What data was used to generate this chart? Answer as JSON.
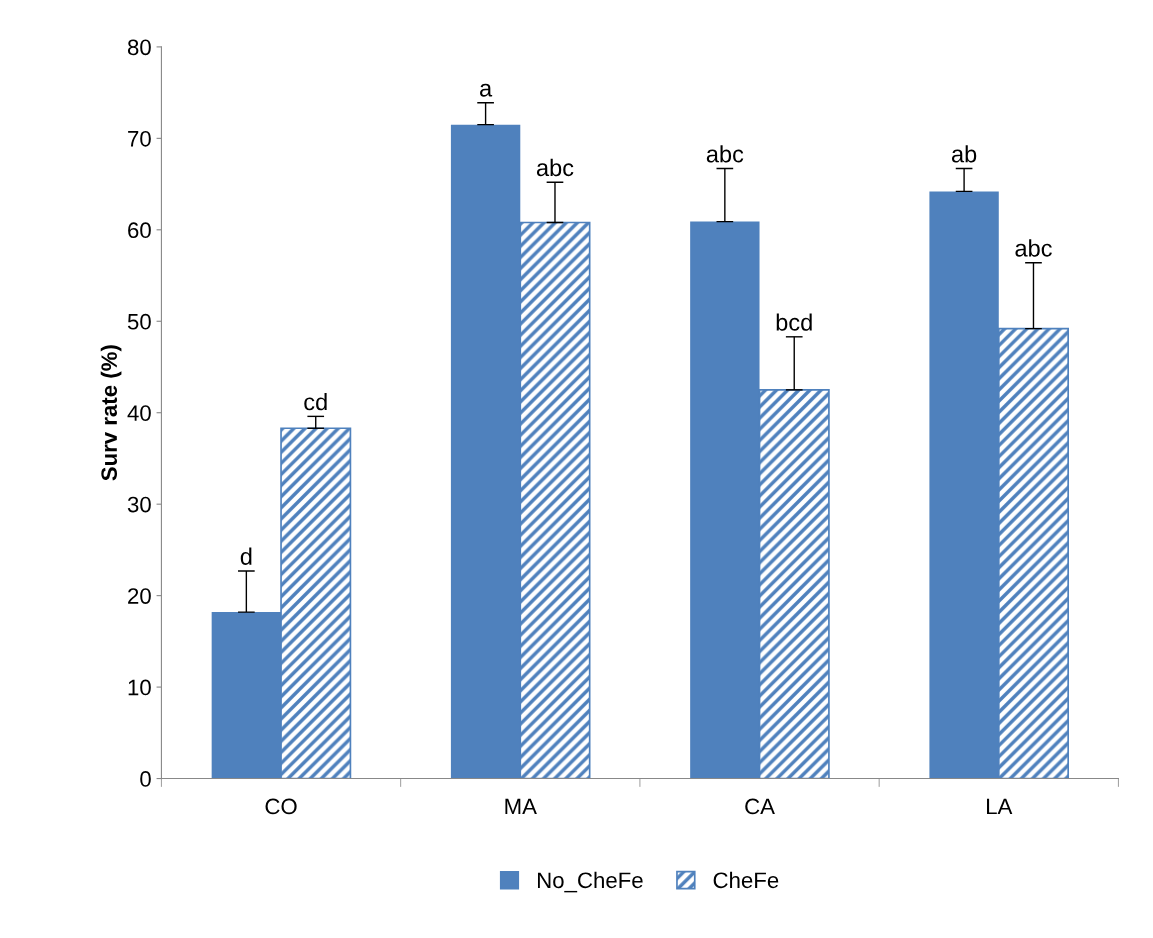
{
  "chart_data": {
    "type": "bar",
    "ylabel": "Surv rate (%)",
    "categories": [
      "CO",
      "MA",
      "CA",
      "LA"
    ],
    "series": [
      {
        "name": "No_CheFe",
        "color": "#4f81bd",
        "values": [
          18.2,
          71.5,
          60.9,
          64.2
        ],
        "errors": [
          [
            18.2,
            22.7
          ],
          [
            71.5,
            73.9
          ],
          [
            60.9,
            66.7
          ],
          [
            64.2,
            66.7
          ]
        ],
        "value_labels": [
          "d",
          "a",
          "abc",
          "ab"
        ]
      },
      {
        "name": "CheFe",
        "color": "#4f81bd",
        "values": [
          38.3,
          60.8,
          42.5,
          49.2
        ],
        "errors": [
          [
            38.3,
            39.6
          ],
          [
            60.8,
            65.2
          ],
          [
            42.5,
            48.3
          ],
          [
            49.2,
            56.4
          ]
        ],
        "value_labels": [
          "cd",
          "abc",
          "bcd",
          "abc"
        ]
      }
    ],
    "ylim": [
      0,
      80
    ],
    "yticks": [
      0,
      10,
      20,
      30,
      40,
      50,
      60,
      70,
      80
    ],
    "grid": false,
    "legend": "bottom"
  }
}
